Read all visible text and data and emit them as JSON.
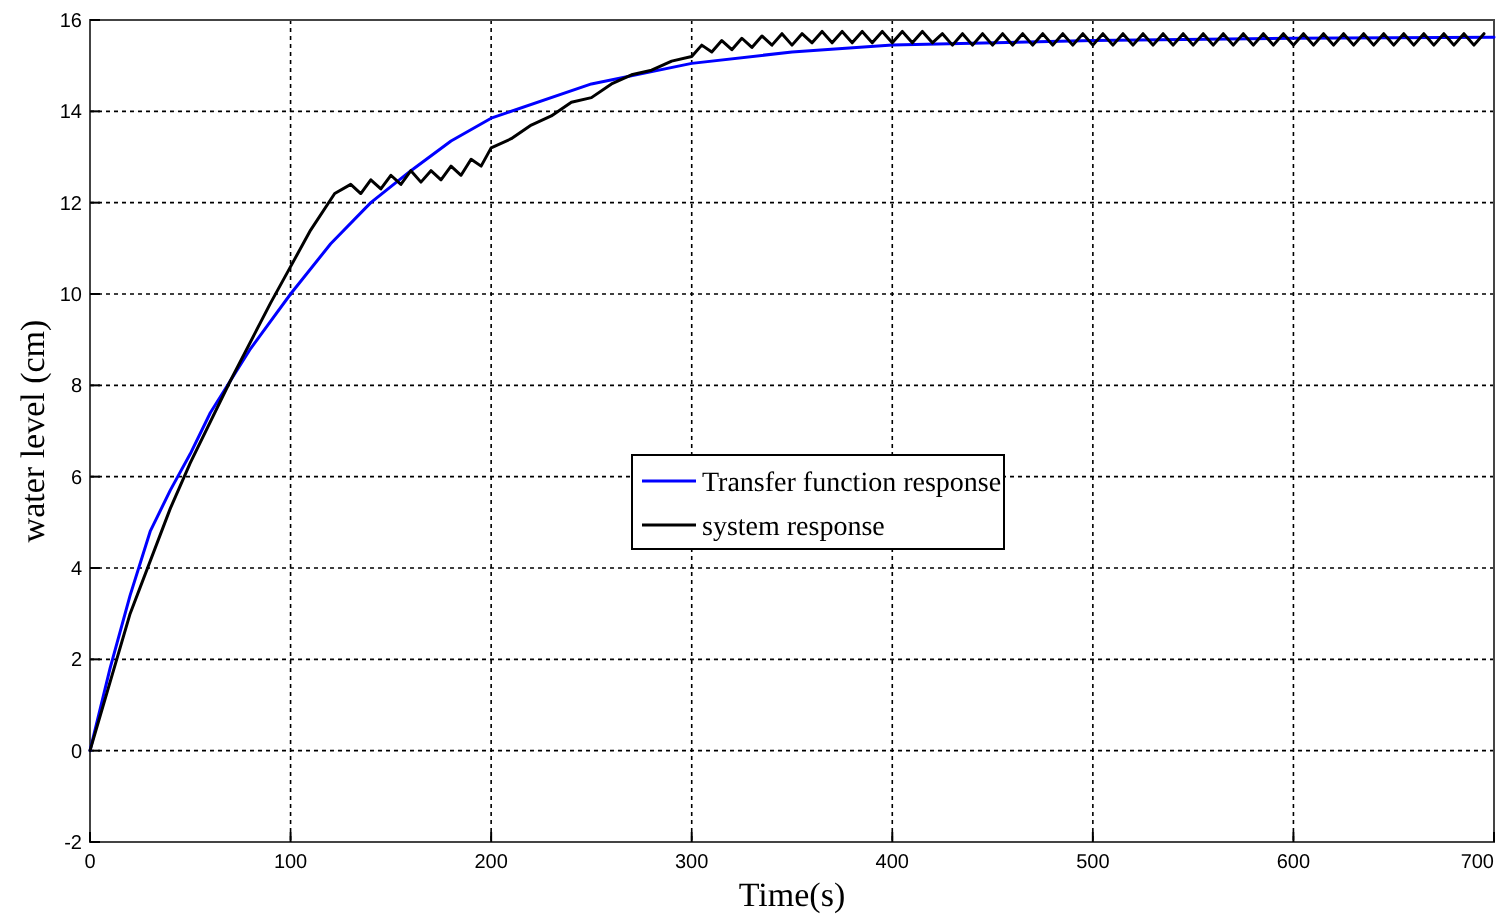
{
  "chart_data": {
    "type": "line",
    "xlabel": "Time(s)",
    "ylabel": "water level (cm)",
    "xlim": [
      0,
      700
    ],
    "xticks": [
      0,
      100,
      200,
      300,
      400,
      500,
      600,
      700
    ],
    "ylim": [
      -2,
      16
    ],
    "yticks": [
      -2,
      0,
      2,
      4,
      6,
      8,
      10,
      12,
      14,
      16
    ],
    "grid": true,
    "legend": "center",
    "line_style": "solid",
    "marker": "none",
    "series": [
      {
        "name": "Transfer function response",
        "color": "#0000ff",
        "x": [
          0,
          10,
          20,
          30,
          40,
          50,
          60,
          70,
          80,
          90,
          100,
          120,
          140,
          160,
          180,
          200,
          250,
          300,
          350,
          400,
          500,
          600,
          700
        ],
        "values": [
          0,
          1.8,
          3.4,
          4.8,
          5.7,
          6.5,
          7.4,
          8.1,
          8.8,
          9.4,
          10.0,
          11.1,
          12.0,
          12.7,
          13.35,
          13.85,
          14.6,
          15.05,
          15.3,
          15.45,
          15.55,
          15.6,
          15.62
        ]
      },
      {
        "name": "system response",
        "color": "#000000",
        "x": [
          0,
          20,
          40,
          50,
          70,
          90,
          100,
          110,
          122,
          130,
          135,
          140,
          145,
          150,
          155,
          160,
          165,
          170,
          175,
          180,
          185,
          190,
          195,
          200,
          210,
          220,
          230,
          240,
          250,
          260,
          270,
          280,
          290,
          300,
          305,
          310,
          315,
          320,
          325,
          330,
          335,
          340,
          345,
          350,
          355,
          360,
          365,
          370,
          375,
          380,
          385,
          390,
          395,
          400,
          405,
          410,
          415,
          420,
          425,
          430,
          435,
          440,
          445,
          450,
          455,
          460,
          465,
          470,
          475,
          480,
          485,
          490,
          495,
          500,
          505,
          510,
          515,
          520,
          525,
          530,
          535,
          540,
          545,
          550,
          555,
          560,
          565,
          570,
          575,
          580,
          585,
          590,
          595,
          600,
          605,
          610,
          615,
          620,
          625,
          630,
          635,
          640,
          645,
          650,
          655,
          660,
          665,
          670,
          675,
          680,
          685,
          690,
          695
        ],
        "values": [
          0,
          3.0,
          5.3,
          6.3,
          8.1,
          9.8,
          10.6,
          11.4,
          12.2,
          12.4,
          12.2,
          12.5,
          12.3,
          12.6,
          12.4,
          12.7,
          12.45,
          12.7,
          12.5,
          12.8,
          12.6,
          12.95,
          12.8,
          13.2,
          13.4,
          13.7,
          13.9,
          14.2,
          14.3,
          14.6,
          14.8,
          14.9,
          15.1,
          15.2,
          15.45,
          15.3,
          15.55,
          15.35,
          15.6,
          15.4,
          15.65,
          15.45,
          15.7,
          15.45,
          15.7,
          15.5,
          15.75,
          15.5,
          15.75,
          15.5,
          15.75,
          15.5,
          15.75,
          15.5,
          15.75,
          15.5,
          15.75,
          15.5,
          15.7,
          15.45,
          15.7,
          15.45,
          15.7,
          15.45,
          15.7,
          15.45,
          15.7,
          15.45,
          15.7,
          15.45,
          15.7,
          15.45,
          15.7,
          15.45,
          15.7,
          15.45,
          15.7,
          15.45,
          15.7,
          15.45,
          15.7,
          15.45,
          15.7,
          15.45,
          15.7,
          15.45,
          15.7,
          15.45,
          15.7,
          15.45,
          15.7,
          15.45,
          15.7,
          15.45,
          15.7,
          15.45,
          15.7,
          15.45,
          15.7,
          15.45,
          15.7,
          15.45,
          15.7,
          15.45,
          15.7,
          15.45,
          15.7,
          15.45,
          15.7,
          15.45,
          15.7,
          15.45,
          15.7
        ]
      }
    ]
  }
}
